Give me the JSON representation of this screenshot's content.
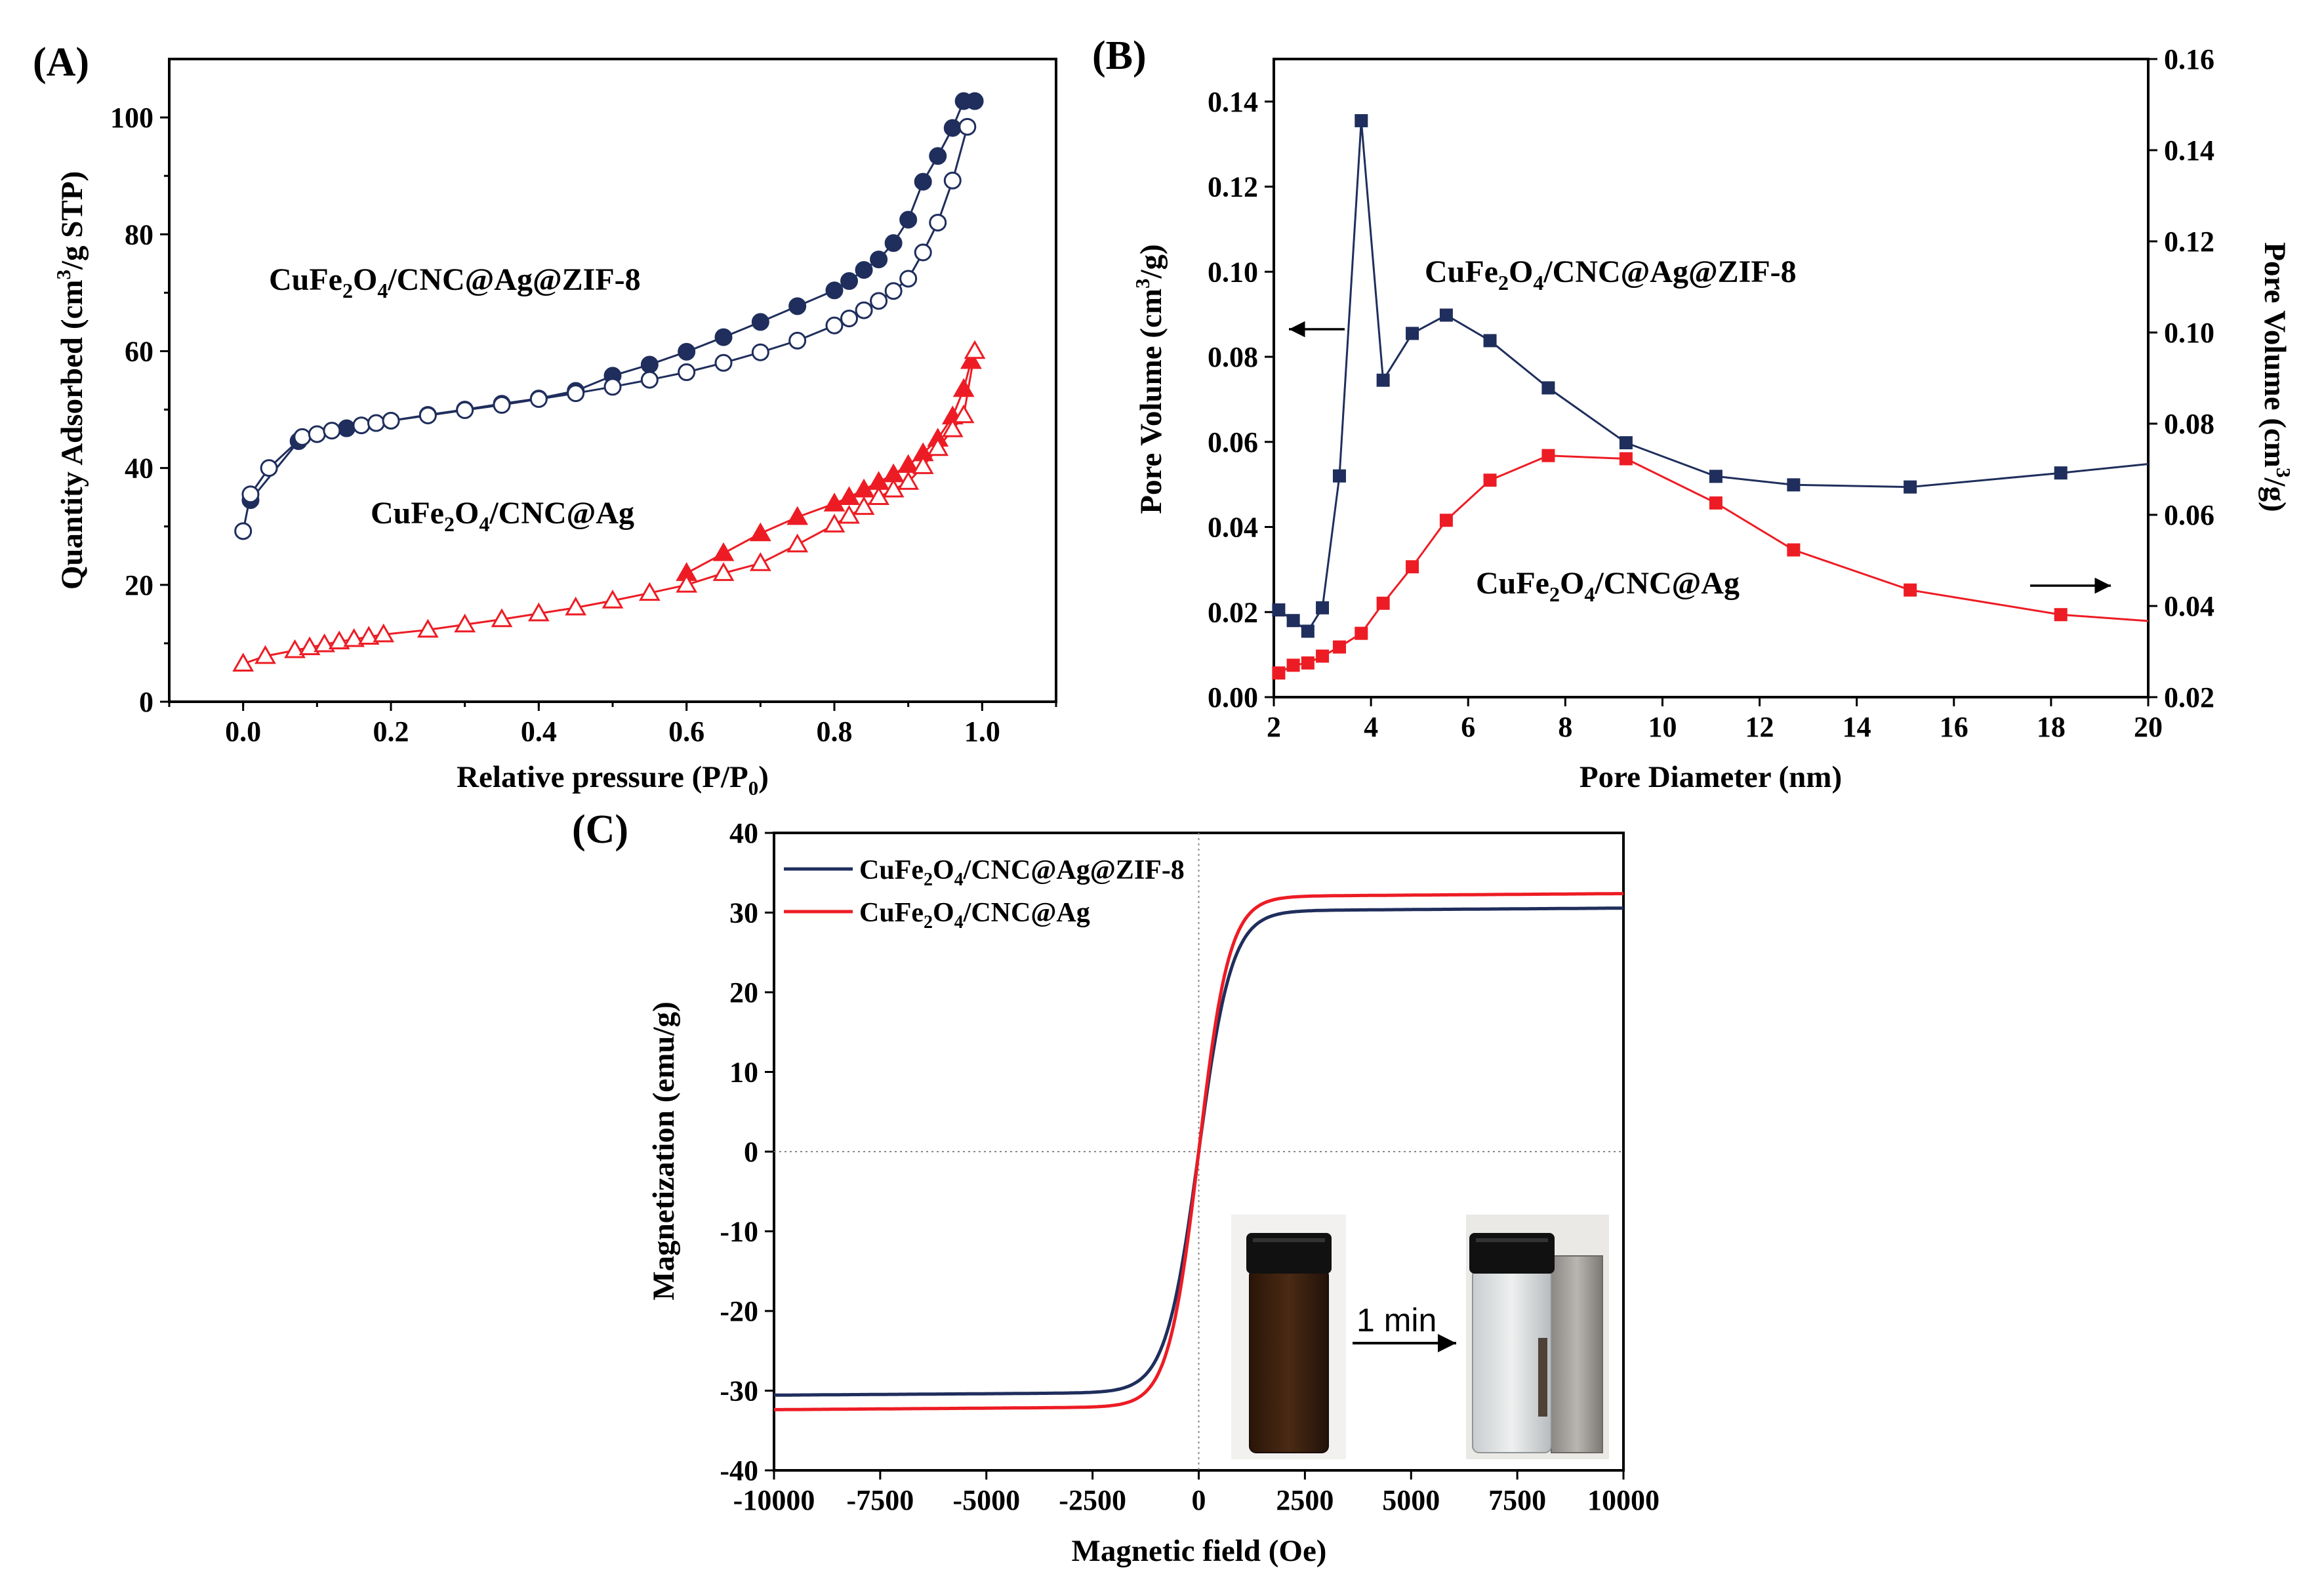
{
  "colors": {
    "navy": "#1f2e5c",
    "red": "#ed1c24"
  },
  "panels": {
    "A": {
      "title": "(A)",
      "xlabel": "Relative pressure (P/P0)",
      "ylabel": "Quantity Adsorbed (cm3/g STP)",
      "xlim": [
        -0.1,
        1.1
      ],
      "ylim": [
        0,
        110
      ],
      "xticks": [
        0.0,
        0.2,
        0.4,
        0.6,
        0.8,
        1.0
      ],
      "xtick_labels": [
        "0.0",
        "0.2",
        "0.4",
        "0.6",
        "0.8",
        "1.0"
      ],
      "yticks": [
        0,
        20,
        40,
        60,
        80,
        100
      ],
      "ytick_labels": [
        "0",
        "20",
        "40",
        "60",
        "80",
        "100"
      ],
      "labels": [
        "CuFe2O4/CNC@Ag@ZIF-8",
        "CuFe2O4/CNC@Ag"
      ]
    },
    "B": {
      "title": "(B)",
      "xlabel": "Pore Diameter (nm)",
      "ylabel_left": "Pore Volume (cm3/g)",
      "ylabel_right": "Pore Volume (cm3/g)",
      "xlim": [
        2,
        20
      ],
      "ylim_left": [
        0,
        0.15
      ],
      "ylim_right": [
        0.02,
        0.16
      ],
      "xticks": [
        2,
        4,
        6,
        8,
        10,
        12,
        14,
        16,
        18,
        20
      ],
      "xtick_labels": [
        "2",
        "4",
        "6",
        "8",
        "10",
        "12",
        "14",
        "16",
        "18",
        "20"
      ],
      "yticks_left": [
        0,
        0.02,
        0.04,
        0.06,
        0.08,
        0.1,
        0.12,
        0.14
      ],
      "ytick_labels_left": [
        "0.00",
        "0.02",
        "0.04",
        "0.06",
        "0.08",
        "0.10",
        "0.12",
        "0.14"
      ],
      "yticks_right": [
        0.02,
        0.04,
        0.06,
        0.08,
        0.1,
        0.12,
        0.14,
        0.16
      ],
      "ytick_labels_right": [
        "0.02",
        "0.04",
        "0.06",
        "0.08",
        "0.10",
        "0.12",
        "0.14",
        "0.16"
      ],
      "labels": [
        "CuFe2O4/CNC@Ag@ZIF-8",
        "CuFe2O4/CNC@Ag"
      ]
    },
    "C": {
      "title": "(C)",
      "xlabel": "Magnetic field (Oe)",
      "ylabel": "Magnetization (emu/g)",
      "xlim": [
        -10000,
        10000
      ],
      "ylim": [
        -40,
        40
      ],
      "xticks": [
        -10000,
        -7500,
        -5000,
        -2500,
        0,
        2500,
        5000,
        7500,
        10000
      ],
      "xtick_labels": [
        "-10000",
        "-7500",
        "-5000",
        "-2500",
        "0",
        "2500",
        "5000",
        "7500",
        "10000"
      ],
      "yticks": [
        -40,
        -30,
        -20,
        -10,
        0,
        10,
        20,
        30,
        40
      ],
      "ytick_labels": [
        "-40",
        "-30",
        "-20",
        "-10",
        "0",
        "10",
        "20",
        "30",
        "40"
      ],
      "legend": [
        "CuFe2O4/CNC@Ag@ZIF-8",
        "CuFe2O4/CNC@Ag"
      ],
      "inset_caption": "1 min"
    }
  },
  "chart_data": [
    {
      "type": "line",
      "panel": "A",
      "title": "(A)",
      "xlabel": "Relative pressure (P/P0)",
      "ylabel": "Quantity Adsorbed (cm3/g STP)",
      "series": [
        {
          "name": "CuFe2O4/CNC@Ag@ZIF-8 adsorption",
          "color": "#1f2e5c",
          "marker": "circle-filled",
          "x": [
            0.01,
            0.075,
            0.14,
            0.2,
            0.25,
            0.3,
            0.35,
            0.4,
            0.45,
            0.5,
            0.55,
            0.6,
            0.65,
            0.7,
            0.75,
            0.8,
            0.82,
            0.84,
            0.86,
            0.88,
            0.9,
            0.92,
            0.94,
            0.96,
            0.975,
            0.99
          ],
          "y": [
            34.5,
            44.6,
            46.8,
            48.1,
            49.1,
            50.0,
            51.0,
            51.9,
            53.2,
            55.8,
            57.7,
            59.9,
            62.4,
            65.0,
            67.7,
            70.4,
            72.0,
            73.9,
            75.7,
            78.5,
            82.5,
            89.0,
            93.4,
            98.2,
            102.8,
            102.8
          ]
        },
        {
          "name": "CuFe2O4/CNC@Ag@ZIF-8 desorption",
          "color": "#1f2e5c",
          "marker": "circle-open",
          "x": [
            0.0,
            0.01,
            0.035,
            0.08,
            0.1,
            0.12,
            0.16,
            0.18,
            0.2,
            0.25,
            0.3,
            0.35,
            0.4,
            0.45,
            0.5,
            0.55,
            0.6,
            0.65,
            0.7,
            0.75,
            0.8,
            0.82,
            0.84,
            0.86,
            0.88,
            0.9,
            0.92,
            0.94,
            0.96,
            0.98
          ],
          "y": [
            29.2,
            35.5,
            40.0,
            45.3,
            45.8,
            46.4,
            47.3,
            47.7,
            48.1,
            49.0,
            49.9,
            50.8,
            51.8,
            52.8,
            53.9,
            55.1,
            56.4,
            58.0,
            59.8,
            61.8,
            64.4,
            65.6,
            67.0,
            68.6,
            70.3,
            72.4,
            76.9,
            82.0,
            89.2,
            98.4
          ]
        },
        {
          "name": "CuFe2O4/CNC@Ag adsorption",
          "color": "#ed1c24",
          "marker": "triangle-filled",
          "x": [
            0.6,
            0.65,
            0.7,
            0.75,
            0.8,
            0.82,
            0.84,
            0.86,
            0.88,
            0.9,
            0.92,
            0.94,
            0.96,
            0.975,
            0.985
          ],
          "y": [
            22.0,
            25.4,
            28.8,
            31.6,
            33.9,
            35.0,
            36.3,
            37.6,
            38.9,
            40.5,
            42.5,
            45.0,
            48.8,
            53.5,
            58.3
          ]
        },
        {
          "name": "CuFe2O4/CNC@Ag desorption",
          "color": "#ed1c24",
          "marker": "triangle-open",
          "x": [
            0.0,
            0.03,
            0.07,
            0.09,
            0.11,
            0.13,
            0.15,
            0.17,
            0.19,
            0.25,
            0.3,
            0.35,
            0.4,
            0.45,
            0.5,
            0.55,
            0.6,
            0.65,
            0.7,
            0.75,
            0.8,
            0.82,
            0.84,
            0.86,
            0.88,
            0.9,
            0.92,
            0.94,
            0.96,
            0.975,
            0.99
          ],
          "y": [
            6.5,
            7.8,
            8.8,
            9.3,
            9.8,
            10.3,
            10.7,
            11.1,
            11.5,
            12.3,
            13.2,
            14.1,
            15.1,
            16.1,
            17.3,
            18.6,
            20.0,
            22.0,
            23.7,
            26.9,
            30.3,
            31.8,
            33.3,
            35.0,
            36.3,
            37.6,
            40.3,
            43.4,
            46.6,
            49.0,
            60.0
          ]
        }
      ]
    },
    {
      "type": "line",
      "panel": "B",
      "title": "(B)",
      "xlabel": "Pore Diameter (nm)",
      "ylabel": "Pore Volume (cm3/g)",
      "series": [
        {
          "name": "CuFe2O4/CNC@Ag@ZIF-8",
          "axis": "left",
          "color": "#1f2e5c",
          "marker": "square",
          "x": [
            2.1,
            2.4,
            2.7,
            3.0,
            3.35,
            3.8,
            4.25,
            4.85,
            5.55,
            6.45,
            7.65,
            9.25,
            11.1,
            12.7,
            15.1,
            18.2,
            20.0
          ],
          "y": [
            0.0205,
            0.018,
            0.0155,
            0.021,
            0.052,
            0.1355,
            0.0745,
            0.0855,
            0.0898,
            0.0838,
            0.0727,
            0.0598,
            0.0519,
            0.0499,
            0.0494,
            0.0527,
            0.0548
          ]
        },
        {
          "name": "CuFe2O4/CNC@Ag",
          "axis": "right",
          "color": "#ed1c24",
          "marker": "square",
          "x": [
            2.1,
            2.4,
            2.7,
            3.0,
            3.35,
            3.8,
            4.25,
            4.85,
            5.55,
            6.45,
            7.65,
            9.25,
            11.1,
            12.7,
            15.1,
            18.2,
            20.0
          ],
          "y": [
            0.0253,
            0.027,
            0.0275,
            0.029,
            0.031,
            0.034,
            0.0406,
            0.0486,
            0.0588,
            0.0676,
            0.073,
            0.0723,
            0.0626,
            0.0523,
            0.0435,
            0.0381,
            0.0367
          ]
        }
      ]
    },
    {
      "type": "line",
      "panel": "C",
      "title": "(C)",
      "xlabel": "Magnetic field (Oe)",
      "ylabel": "Magnetization (emu/g)",
      "series": [
        {
          "name": "CuFe2O4/CNC@Ag@ZIF-8",
          "color": "#1f2e5c",
          "Ms": 30.2,
          "Hsat": 1400
        },
        {
          "name": "CuFe2O4/CNC@Ag",
          "color": "#ed1c24",
          "Ms": 32.0,
          "Hsat": 1300
        }
      ]
    }
  ]
}
